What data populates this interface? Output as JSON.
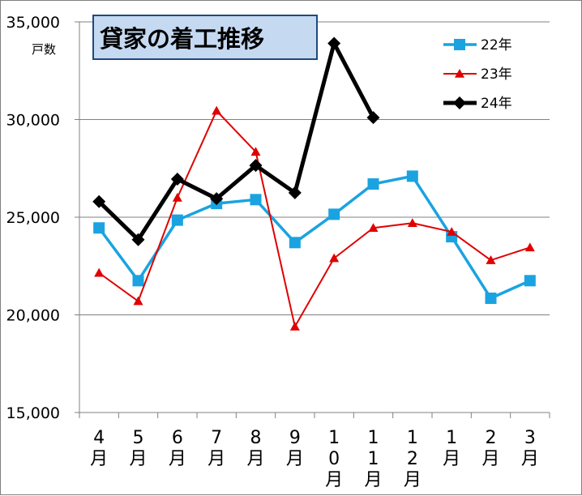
{
  "chart_data": {
    "type": "line",
    "title": "貸家の着工推移",
    "ylabel": "戸数",
    "xlabel": "",
    "ylim": [
      15000,
      35000
    ],
    "yticks": [
      15000,
      20000,
      25000,
      30000,
      35000
    ],
    "ytick_labels": [
      "15,000",
      "20,000",
      "25,000",
      "30,000",
      "35,000"
    ],
    "categories": [
      "4月",
      "5月",
      "6月",
      "7月",
      "8月",
      "9月",
      "10月",
      "11月",
      "12月",
      "1月",
      "2月",
      "3月"
    ],
    "grid": true,
    "legend_position": "top-right",
    "series": [
      {
        "name": "22年",
        "color": "#1aa3e0",
        "marker": "square",
        "values": [
          24450,
          21750,
          24850,
          25700,
          25900,
          23700,
          25150,
          26700,
          27100,
          24000,
          20850,
          21750
        ]
      },
      {
        "name": "23年",
        "color": "#e00000",
        "marker": "triangle",
        "values": [
          22150,
          20700,
          26000,
          30450,
          28350,
          19400,
          22900,
          24450,
          24700,
          24250,
          22800,
          23450
        ]
      },
      {
        "name": "24年",
        "color": "#000000",
        "marker": "diamond",
        "values": [
          25800,
          23850,
          26950,
          25950,
          27650,
          26250,
          33900,
          30100,
          null,
          null,
          null,
          null
        ]
      }
    ]
  }
}
